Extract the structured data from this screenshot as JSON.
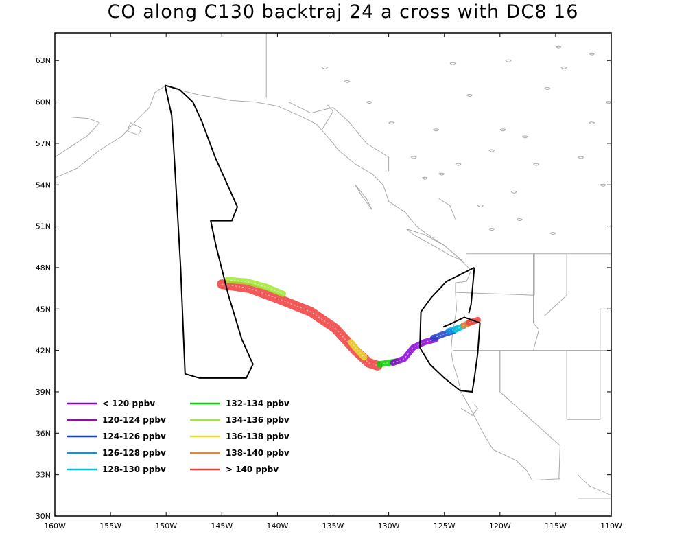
{
  "title": "CO along C130 backtraj 24 a cross with DC8 16",
  "axes": {
    "lon_range": [
      -160,
      -110
    ],
    "lat_range": [
      30,
      65
    ],
    "lon_ticks": [
      "160W",
      "155W",
      "150W",
      "145W",
      "140W",
      "135W",
      "130W",
      "125W",
      "120W",
      "115W",
      "110W"
    ],
    "lon_tick_values": [
      -160,
      -155,
      -150,
      -145,
      -140,
      -135,
      -130,
      -125,
      -120,
      -115,
      -110
    ],
    "lat_ticks": [
      "30N",
      "33N",
      "36N",
      "39N",
      "42N",
      "45N",
      "48N",
      "51N",
      "54N",
      "57N",
      "60N",
      "63N"
    ],
    "lat_tick_values": [
      30,
      33,
      36,
      39,
      42,
      45,
      48,
      51,
      54,
      57,
      60,
      63
    ]
  },
  "colors": {
    "coastline": "#aaaaaa",
    "flight_track": "#000000",
    "frame": "#000000"
  },
  "legend": [
    {
      "label": "< 120 ppbv",
      "color": "#8a00d4"
    },
    {
      "label": "120-124 ppbv",
      "color": "#9b00c8"
    },
    {
      "label": "124-126 ppbv",
      "color": "#1f3ec8"
    },
    {
      "label": "126-128 ppbv",
      "color": "#0a96e6"
    },
    {
      "label": "128-130 ppbv",
      "color": "#00c8d2"
    },
    {
      "label": "132-134 ppbv",
      "color": "#00d200"
    },
    {
      "label": "134-136 ppbv",
      "color": "#a0e632"
    },
    {
      "label": "136-138 ppbv",
      "color": "#e6dc32"
    },
    {
      "label": "138-140 ppbv",
      "color": "#f08228"
    },
    {
      "label": "> 140 ppbv",
      "color": "#f03c3c"
    }
  ],
  "chart_data": {
    "type": "map",
    "flight_track_dc8": [
      [
        -150.1,
        61.2
      ],
      [
        -148.8,
        60.9
      ],
      [
        -147.6,
        60.0
      ],
      [
        -146.8,
        58.6
      ],
      [
        -145.6,
        56.0
      ],
      [
        -143.6,
        52.4
      ],
      [
        -144.1,
        51.4
      ],
      [
        -146.0,
        51.4
      ],
      [
        -145.5,
        49.5
      ],
      [
        -144.4,
        46.0
      ],
      [
        -143.2,
        42.8
      ],
      [
        -142.2,
        41.0
      ],
      [
        -142.8,
        40.0
      ],
      [
        -147.0,
        40.0
      ],
      [
        -148.3,
        40.3
      ],
      [
        -148.7,
        48.0
      ],
      [
        -149.2,
        55.0
      ],
      [
        -149.5,
        59.0
      ],
      [
        -150.1,
        61.2
      ]
    ],
    "flight_track_c130": [
      [
        -122.3,
        48.0
      ],
      [
        -124.8,
        47.0
      ],
      [
        -126.2,
        45.8
      ],
      [
        -127.1,
        44.8
      ],
      [
        -127.2,
        42.2
      ],
      [
        -126.3,
        41.0
      ],
      [
        -125.0,
        40.0
      ],
      [
        -123.6,
        39.1
      ],
      [
        -122.5,
        39.0
      ],
      [
        -122.3,
        40.0
      ],
      [
        -122.0,
        41.8
      ],
      [
        -121.8,
        44.0
      ],
      [
        -123.2,
        44.4
      ],
      [
        -124.5,
        43.9
      ],
      [
        -125.1,
        43.7
      ]
    ],
    "c130_spur": [
      [
        -122.3,
        48.0
      ],
      [
        -122.6,
        45.3
      ],
      [
        -122.8,
        44.7
      ]
    ],
    "back_trajectory_co": {
      "description_units": "ppbv",
      "segments": [
        {
          "color": "#f03c3c",
          "points": [
            [
              -145.0,
              46.8
            ],
            [
              -142.5,
              46.5
            ],
            [
              -139.8,
              45.7
            ],
            [
              -137.0,
              44.8
            ],
            [
              -134.8,
              43.6
            ],
            [
              -133.0,
              42.0
            ],
            [
              -131.8,
              41.1
            ],
            [
              -131.0,
              40.9
            ]
          ]
        },
        {
          "color": "#a0e632",
          "points": [
            [
              -144.5,
              47.1
            ],
            [
              -142.8,
              47.0
            ],
            [
              -141.0,
              46.6
            ],
            [
              -139.5,
              46.1
            ]
          ]
        },
        {
          "color": "#e6dc32",
          "points": [
            [
              -133.4,
              42.6
            ],
            [
              -132.8,
              42.0
            ],
            [
              -132.2,
              41.5
            ]
          ]
        },
        {
          "color": "#00d200",
          "points": [
            [
              -130.8,
              41.0
            ],
            [
              -130.0,
              41.1
            ],
            [
              -129.3,
              41.2
            ]
          ]
        },
        {
          "color": "#8a00d4",
          "points": [
            [
              -129.6,
              41.1
            ],
            [
              -128.6,
              41.4
            ],
            [
              -127.8,
              42.2
            ],
            [
              -126.8,
              42.6
            ],
            [
              -125.8,
              42.8
            ]
          ]
        },
        {
          "color": "#1f3ec8",
          "points": [
            [
              -126.0,
              42.9
            ],
            [
              -125.0,
              43.2
            ],
            [
              -124.2,
              43.4
            ]
          ]
        },
        {
          "color": "#0a96e6",
          "points": [
            [
              -124.6,
              43.4
            ],
            [
              -123.8,
              43.6
            ]
          ]
        },
        {
          "color": "#00c8d2",
          "points": [
            [
              -124.0,
              43.5
            ],
            [
              -123.2,
              43.8
            ]
          ]
        },
        {
          "color": "#f08228",
          "points": [
            [
              -123.3,
              43.8
            ],
            [
              -122.7,
              44.0
            ]
          ]
        },
        {
          "color": "#f03c3c",
          "points": [
            [
              -122.8,
              44.0
            ],
            [
              -122.0,
              44.2
            ]
          ]
        }
      ]
    }
  }
}
